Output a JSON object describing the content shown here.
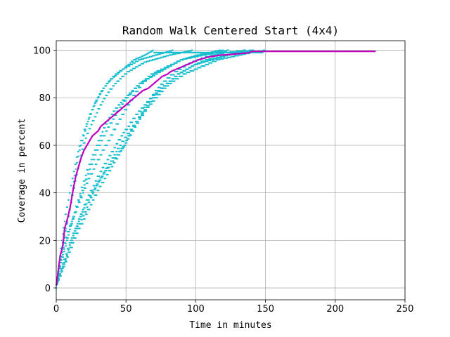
{
  "chart_data": {
    "type": "scatter",
    "title": "Random Walk Centered Start (4x4)",
    "xlabel": "Time in minutes",
    "ylabel": "Coverage in percent",
    "xlim": [
      0,
      250
    ],
    "ylim": [
      -5,
      104
    ],
    "xticks": [
      0,
      50,
      100,
      150,
      200,
      250
    ],
    "yticks": [
      0,
      20,
      40,
      60,
      80,
      100
    ],
    "grid": true,
    "colors": {
      "scatter": "#17becf",
      "mean_line": "#bf00bf",
      "grid": "#b0b0b0"
    },
    "series": [
      {
        "kind": "scatter_runs",
        "runs": [
          [
            [
              0,
              0
            ],
            [
              2,
              6
            ],
            [
              4,
              13
            ],
            [
              6,
              19
            ],
            [
              10,
              26
            ],
            [
              14,
              32
            ],
            [
              18,
              38
            ],
            [
              22,
              44
            ],
            [
              27,
              50
            ],
            [
              32,
              56
            ],
            [
              38,
              62
            ],
            [
              44,
              69
            ],
            [
              50,
              75
            ],
            [
              56,
              81
            ],
            [
              62,
              86
            ],
            [
              68,
              89
            ],
            [
              76,
              92
            ],
            [
              84,
              94
            ],
            [
              90,
              96
            ],
            [
              96,
              97
            ],
            [
              104,
              98
            ],
            [
              112,
              99
            ],
            [
              120,
              100
            ]
          ],
          [
            [
              0,
              0
            ],
            [
              2,
              8
            ],
            [
              4,
              16
            ],
            [
              7,
              25
            ],
            [
              10,
              33
            ],
            [
              12,
              42
            ],
            [
              14,
              50
            ],
            [
              17,
              58
            ],
            [
              20,
              64
            ],
            [
              23,
              70
            ],
            [
              26,
              75
            ],
            [
              29,
              79
            ],
            [
              33,
              83
            ],
            [
              37,
              86
            ],
            [
              40,
              88
            ],
            [
              44,
              90
            ],
            [
              48,
              92
            ],
            [
              52,
              94
            ],
            [
              56,
              96
            ],
            [
              60,
              97
            ],
            [
              64,
              98
            ],
            [
              67,
              99
            ],
            [
              70,
              100
            ]
          ],
          [
            [
              0,
              0
            ],
            [
              3,
              5
            ],
            [
              6,
              10
            ],
            [
              9,
              15
            ],
            [
              13,
              21
            ],
            [
              17,
              27
            ],
            [
              21,
              32
            ],
            [
              25,
              38
            ],
            [
              29,
              43
            ],
            [
              34,
              48
            ],
            [
              39,
              52
            ],
            [
              44,
              56
            ],
            [
              49,
              60
            ],
            [
              54,
              66
            ],
            [
              60,
              72
            ],
            [
              66,
              78
            ],
            [
              72,
              83
            ],
            [
              78,
              87
            ],
            [
              86,
              91
            ],
            [
              94,
              94
            ],
            [
              102,
              96
            ],
            [
              112,
              98
            ],
            [
              122,
              99
            ],
            [
              136,
              100
            ]
          ],
          [
            [
              0,
              0
            ],
            [
              3,
              9
            ],
            [
              5,
              18
            ],
            [
              8,
              27
            ],
            [
              11,
              36
            ],
            [
              14,
              45
            ],
            [
              17,
              53
            ],
            [
              20,
              61
            ],
            [
              24,
              67
            ],
            [
              28,
              72
            ],
            [
              32,
              77
            ],
            [
              36,
              81
            ],
            [
              41,
              85
            ],
            [
              46,
              88
            ],
            [
              52,
              91
            ],
            [
              58,
              93
            ],
            [
              64,
              95
            ],
            [
              70,
              96
            ],
            [
              76,
              97
            ],
            [
              82,
              98
            ],
            [
              90,
              99
            ],
            [
              98,
              100
            ]
          ],
          [
            [
              0,
              0
            ],
            [
              2,
              4
            ],
            [
              5,
              9
            ],
            [
              8,
              14
            ],
            [
              11,
              20
            ],
            [
              15,
              26
            ],
            [
              19,
              32
            ],
            [
              23,
              37
            ],
            [
              28,
              42
            ],
            [
              33,
              47
            ],
            [
              38,
              52
            ],
            [
              42,
              56
            ],
            [
              46,
              60
            ],
            [
              52,
              65
            ],
            [
              58,
              70
            ],
            [
              64,
              75
            ],
            [
              70,
              80
            ],
            [
              76,
              84
            ],
            [
              82,
              87
            ],
            [
              88,
              90
            ],
            [
              94,
              92
            ],
            [
              100,
              94
            ],
            [
              106,
              95
            ],
            [
              112,
              96
            ],
            [
              118,
              97
            ],
            [
              124,
              98
            ],
            [
              130,
              99
            ],
            [
              140,
              100
            ]
          ],
          [
            [
              0,
              0
            ],
            [
              2,
              7
            ],
            [
              5,
              14
            ],
            [
              8,
              21
            ],
            [
              12,
              29
            ],
            [
              16,
              37
            ],
            [
              20,
              45
            ],
            [
              24,
              52
            ],
            [
              28,
              58
            ],
            [
              32,
              64
            ],
            [
              36,
              69
            ],
            [
              40,
              73
            ],
            [
              45,
              77
            ],
            [
              50,
              80
            ],
            [
              55,
              83
            ],
            [
              60,
              86
            ],
            [
              66,
              88
            ],
            [
              72,
              90
            ],
            [
              78,
              92
            ],
            [
              84,
              94
            ],
            [
              90,
              96
            ],
            [
              96,
              97
            ],
            [
              102,
              98
            ],
            [
              110,
              99
            ],
            [
              118,
              100
            ]
          ],
          [
            [
              0,
              0
            ],
            [
              3,
              6
            ],
            [
              6,
              12
            ],
            [
              10,
              19
            ],
            [
              14,
              25
            ],
            [
              18,
              31
            ],
            [
              22,
              37
            ],
            [
              27,
              43
            ],
            [
              32,
              49
            ],
            [
              37,
              54
            ],
            [
              42,
              59
            ],
            [
              47,
              64
            ],
            [
              52,
              68
            ],
            [
              58,
              73
            ],
            [
              64,
              77
            ],
            [
              70,
              81
            ],
            [
              76,
              84
            ],
            [
              82,
              87
            ],
            [
              88,
              90
            ],
            [
              94,
              92
            ],
            [
              100,
              94
            ],
            [
              108,
              96
            ],
            [
              116,
              97
            ],
            [
              124,
              98
            ],
            [
              132,
              99
            ],
            [
              142,
              100
            ]
          ],
          [
            [
              0,
              0
            ],
            [
              2,
              10
            ],
            [
              4,
              20
            ],
            [
              6,
              28
            ],
            [
              9,
              37
            ],
            [
              12,
              46
            ],
            [
              15,
              55
            ],
            [
              18,
              62
            ],
            [
              22,
              69
            ],
            [
              26,
              75
            ],
            [
              30,
              80
            ],
            [
              34,
              84
            ],
            [
              38,
              87
            ],
            [
              43,
              90
            ],
            [
              48,
              92
            ],
            [
              54,
              94
            ],
            [
              60,
              96
            ],
            [
              66,
              97
            ],
            [
              72,
              98
            ],
            [
              78,
              99
            ],
            [
              84,
              100
            ]
          ],
          [
            [
              0,
              0
            ],
            [
              3,
              5
            ],
            [
              7,
              11
            ],
            [
              11,
              17
            ],
            [
              15,
              23
            ],
            [
              20,
              29
            ],
            [
              25,
              35
            ],
            [
              30,
              41
            ],
            [
              35,
              46
            ],
            [
              40,
              51
            ],
            [
              45,
              56
            ],
            [
              50,
              61
            ],
            [
              55,
              66
            ],
            [
              60,
              71
            ],
            [
              66,
              76
            ],
            [
              72,
              80
            ],
            [
              78,
              84
            ],
            [
              84,
              87
            ],
            [
              92,
              90
            ],
            [
              100,
              92
            ],
            [
              108,
              94
            ],
            [
              116,
              96
            ],
            [
              124,
              97
            ],
            [
              132,
              98
            ],
            [
              140,
              99
            ],
            [
              150,
              100
            ]
          ],
          [
            [
              0,
              0
            ],
            [
              2,
              6
            ],
            [
              5,
              13
            ],
            [
              8,
              20
            ],
            [
              11,
              27
            ],
            [
              15,
              34
            ],
            [
              19,
              41
            ],
            [
              23,
              48
            ],
            [
              27,
              54
            ],
            [
              31,
              60
            ],
            [
              36,
              66
            ],
            [
              41,
              71
            ],
            [
              46,
              76
            ],
            [
              51,
              80
            ],
            [
              57,
              84
            ],
            [
              63,
              87
            ],
            [
              69,
              90
            ],
            [
              76,
              92
            ],
            [
              83,
              94
            ],
            [
              90,
              96
            ],
            [
              98,
              97
            ],
            [
              106,
              98
            ],
            [
              114,
              99
            ],
            [
              124,
              100
            ]
          ]
        ]
      },
      {
        "kind": "mean_line",
        "x": [
          0,
          1,
          2,
          3,
          4,
          5,
          6,
          8,
          10,
          12,
          14,
          16,
          18,
          20,
          22,
          24,
          26,
          28,
          30,
          32,
          34,
          36,
          38,
          40,
          42,
          44,
          46,
          48,
          50,
          52,
          54,
          56,
          58,
          60,
          62,
          64,
          66,
          68,
          70,
          72,
          74,
          76,
          78,
          80,
          82,
          84,
          86,
          88,
          90,
          92,
          94,
          96,
          98,
          100,
          102,
          104,
          106,
          108,
          110,
          112,
          114,
          116,
          118,
          120,
          122,
          124,
          126,
          128,
          130,
          132,
          134,
          136,
          138,
          140,
          150,
          160,
          170,
          180,
          190,
          200,
          210,
          220,
          229
        ],
        "y": [
          1,
          5,
          10,
          14,
          16,
          19,
          25,
          29,
          34,
          41,
          47,
          51,
          55,
          58,
          60,
          62,
          64,
          65,
          66,
          68,
          69,
          70,
          71,
          72,
          73,
          74,
          75,
          76,
          77,
          78,
          79,
          80,
          81,
          82,
          83,
          83.5,
          84,
          85,
          86,
          87,
          88,
          89,
          89.5,
          90,
          91,
          91.5,
          92,
          92.5,
          93,
          93.5,
          94,
          94.5,
          95,
          95.5,
          96,
          96.3,
          96.6,
          97,
          97.2,
          97.4,
          97.6,
          97.8,
          98,
          98,
          98.1,
          98.2,
          98.3,
          98.4,
          98.5,
          98.6,
          98.7,
          98.8,
          98.9,
          99.5,
          99.5,
          99.5,
          99.5,
          99.5,
          99.5,
          99.5,
          99.5,
          99.5,
          99.5
        ]
      }
    ]
  }
}
